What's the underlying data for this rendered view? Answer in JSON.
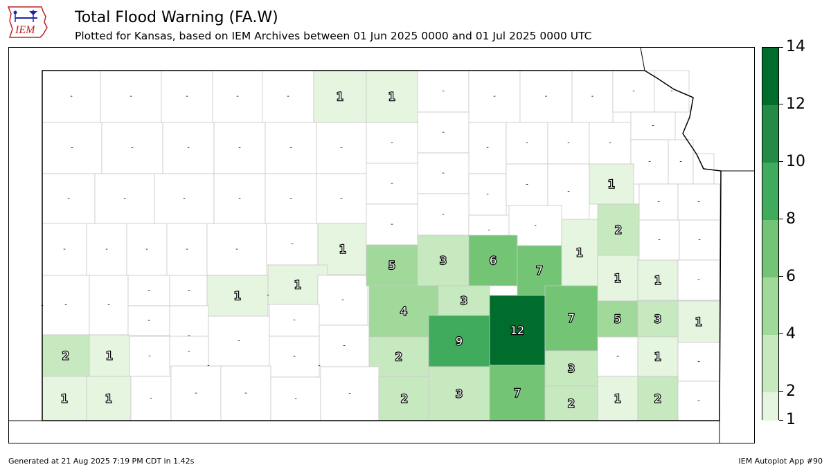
{
  "header": {
    "title": "Total Flood Warning (FA.W)",
    "subtitle": "Plotted for Kansas, based on IEM Archives  between 01 Jun 2025 0000 and 01 Jul 2025 0000 UTC",
    "logo_text": "IEM"
  },
  "footer": {
    "generated": "Generated at 21 Aug 2025 7:19 PM CDT in 1.42s",
    "app": "IEM Autoplot App #90"
  },
  "legend": {
    "ticks": [
      "1",
      "2",
      "4",
      "6",
      "8",
      "10",
      "12",
      "14"
    ],
    "bins": [
      {
        "from": 1,
        "to": 2,
        "color": "#e5f5e0"
      },
      {
        "from": 2,
        "to": 4,
        "color": "#c7e9c0"
      },
      {
        "from": 4,
        "to": 6,
        "color": "#a1d99b"
      },
      {
        "from": 6,
        "to": 8,
        "color": "#74c476"
      },
      {
        "from": 8,
        "to": 10,
        "color": "#41ab5d"
      },
      {
        "from": 10,
        "to": 12,
        "color": "#238b45"
      },
      {
        "from": 12,
        "to": 14,
        "color": "#006d2c"
      }
    ],
    "range": [
      1,
      14
    ]
  },
  "chart_data": {
    "type": "choropleth",
    "region": "Kansas counties",
    "counties": [
      {
        "id": "r1c1",
        "label": "-"
      },
      {
        "id": "r1c2",
        "label": "-"
      },
      {
        "id": "r1c3",
        "label": "-"
      },
      {
        "id": "r1c4",
        "label": "-"
      },
      {
        "id": "r1c5",
        "label": "-"
      },
      {
        "id": "r1c6",
        "label": "1",
        "value": 1
      },
      {
        "id": "r1c7",
        "label": "1",
        "value": 1
      },
      {
        "id": "r1c8",
        "label": "-"
      },
      {
        "id": "r1c9",
        "label": "-"
      },
      {
        "id": "r1c10",
        "label": "-"
      },
      {
        "id": "r1c11",
        "label": "-"
      },
      {
        "id": "r1c12",
        "label": "-"
      },
      {
        "id": "r1c13",
        "label": "-"
      },
      {
        "id": "r2c1",
        "label": "-"
      },
      {
        "id": "r2c2",
        "label": "-"
      },
      {
        "id": "r2c3",
        "label": "-"
      },
      {
        "id": "r2c4",
        "label": "-"
      },
      {
        "id": "r2c5",
        "label": "-"
      },
      {
        "id": "r2c6",
        "label": "-"
      },
      {
        "id": "r2c7",
        "label": "-"
      },
      {
        "id": "r2c8a",
        "label": "-"
      },
      {
        "id": "r2c8b",
        "label": "-"
      },
      {
        "id": "r2c9",
        "label": "-"
      },
      {
        "id": "r2c10",
        "label": "-"
      },
      {
        "id": "r2c11",
        "label": "-"
      },
      {
        "id": "r2c12",
        "label": "-"
      },
      {
        "id": "r2c13",
        "label": "-"
      },
      {
        "id": "r2c14",
        "label": "-"
      },
      {
        "id": "r2c15",
        "label": "-"
      },
      {
        "id": "r3c1",
        "label": "-"
      },
      {
        "id": "r3c2",
        "label": "-"
      },
      {
        "id": "r3c3",
        "label": "-"
      },
      {
        "id": "r3c4",
        "label": "-"
      },
      {
        "id": "r3c5",
        "label": "-"
      },
      {
        "id": "r3c6",
        "label": "-"
      },
      {
        "id": "r3c7",
        "label": "-"
      },
      {
        "id": "r3c8",
        "label": "-"
      },
      {
        "id": "r3c9",
        "label": "-"
      },
      {
        "id": "r3c10",
        "label": "-"
      },
      {
        "id": "r3c11",
        "label": "-"
      },
      {
        "id": "r3c12",
        "label": "1",
        "value": 1
      },
      {
        "id": "r3c13",
        "label": "-"
      },
      {
        "id": "r3c14",
        "label": "-"
      },
      {
        "id": "r4c1",
        "label": "-"
      },
      {
        "id": "r4c2",
        "label": "-"
      },
      {
        "id": "r4c3",
        "label": "-"
      },
      {
        "id": "r4c4",
        "label": "-"
      },
      {
        "id": "r4c5",
        "label": "-"
      },
      {
        "id": "r4c6",
        "label": "-"
      },
      {
        "id": "r4c7",
        "label": "1",
        "value": 1
      },
      {
        "id": "r4c8",
        "label": "-"
      },
      {
        "id": "r4c9",
        "label": "-"
      },
      {
        "id": "r4c10",
        "label": "-"
      },
      {
        "id": "r4c11",
        "label": "-"
      },
      {
        "id": "r4c12",
        "label": "2",
        "value": 2
      },
      {
        "id": "r4c13",
        "label": "-"
      },
      {
        "id": "r4c14",
        "label": "-"
      },
      {
        "id": "r5c1",
        "label": "-"
      },
      {
        "id": "r5c2",
        "label": "-"
      },
      {
        "id": "r5c3",
        "label": "-"
      },
      {
        "id": "r5c4",
        "label": "-"
      },
      {
        "id": "r5c5",
        "label": "1",
        "value": 1
      },
      {
        "id": "r5c6",
        "label": "1",
        "value": 1
      },
      {
        "id": "r5c7",
        "label": "-"
      },
      {
        "id": "r5c8",
        "label": "5",
        "value": 5
      },
      {
        "id": "r5c9",
        "label": "3",
        "value": 3
      },
      {
        "id": "r5c10",
        "label": "6",
        "value": 6
      },
      {
        "id": "r5c11",
        "label": "7",
        "value": 7
      },
      {
        "id": "r5c12",
        "label": "1",
        "value": 1
      },
      {
        "id": "r5c13",
        "label": "1",
        "value": 1
      },
      {
        "id": "r5c14",
        "label": "1",
        "value": 1
      },
      {
        "id": "r5c15",
        "label": "-"
      },
      {
        "id": "r6c1",
        "label": "-"
      },
      {
        "id": "r6c2",
        "label": "-"
      },
      {
        "id": "r6c3",
        "label": "-"
      },
      {
        "id": "r6c4",
        "label": "-"
      },
      {
        "id": "r6c5",
        "label": "-"
      },
      {
        "id": "r6c6",
        "label": "-"
      },
      {
        "id": "r6c7",
        "label": "-"
      },
      {
        "id": "r6c8",
        "label": "4",
        "value": 4
      },
      {
        "id": "r6c9",
        "label": "3",
        "value": 3
      },
      {
        "id": "r6c10",
        "label": "12",
        "value": 12
      },
      {
        "id": "r6c11",
        "label": "7",
        "value": 7
      },
      {
        "id": "r6c12",
        "label": "5",
        "value": 5
      },
      {
        "id": "r6c13",
        "label": "3",
        "value": 3
      },
      {
        "id": "r6c14",
        "label": "1",
        "value": 1
      },
      {
        "id": "r7c1",
        "label": "2",
        "value": 2
      },
      {
        "id": "r7c2",
        "label": "1",
        "value": 1
      },
      {
        "id": "r7c3",
        "label": "-"
      },
      {
        "id": "r7c4",
        "label": "-"
      },
      {
        "id": "r7c5",
        "label": "-"
      },
      {
        "id": "r7c6",
        "label": "-"
      },
      {
        "id": "r7c7",
        "label": "-"
      },
      {
        "id": "r7c8",
        "label": "2",
        "value": 2
      },
      {
        "id": "r7c9",
        "label": "9",
        "value": 9
      },
      {
        "id": "r7c10",
        "label": "3",
        "value": 3
      },
      {
        "id": "r7c11",
        "label": "-"
      },
      {
        "id": "r7c12",
        "label": "1",
        "value": 1
      },
      {
        "id": "r7c13",
        "label": "-"
      },
      {
        "id": "r8c1",
        "label": "1",
        "value": 1
      },
      {
        "id": "r8c2",
        "label": "1",
        "value": 1
      },
      {
        "id": "r8c3",
        "label": "-"
      },
      {
        "id": "r8c4",
        "label": "-"
      },
      {
        "id": "r8c5",
        "label": "-"
      },
      {
        "id": "r8c6",
        "label": "-"
      },
      {
        "id": "r8c7",
        "label": "-"
      },
      {
        "id": "r8c8",
        "label": "2",
        "value": 2
      },
      {
        "id": "r8c9",
        "label": "3",
        "value": 3
      },
      {
        "id": "r8c10",
        "label": "7",
        "value": 7
      },
      {
        "id": "r8c11",
        "label": "2",
        "value": 2
      },
      {
        "id": "r8c12",
        "label": "1",
        "value": 1
      },
      {
        "id": "r8c13",
        "label": "2",
        "value": 2
      },
      {
        "id": "r8c14",
        "label": "-"
      }
    ]
  }
}
